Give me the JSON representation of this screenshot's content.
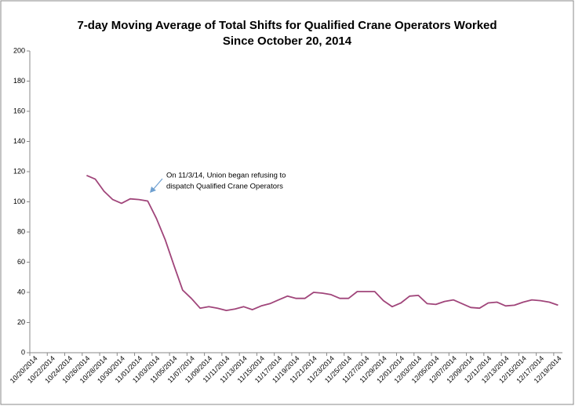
{
  "chart_data": {
    "type": "line",
    "title": "7-day Moving Average of Total Shifts for Qualified Crane Operators Worked",
    "subtitle": "Since October 20, 2014",
    "annotation": [
      "On 11/3/14, Union began refusing to",
      "dispatch Qualified Crane Operators"
    ],
    "categories": [
      "10/20/2014",
      null,
      "10/22/2014",
      null,
      "10/24/2014",
      null,
      "10/26/2014",
      null,
      "10/28/2014",
      null,
      "10/30/2014",
      null,
      "11/01/2014",
      null,
      "11/03/2014",
      null,
      "11/05/2014",
      null,
      "11/07/2014",
      null,
      "11/09/2014",
      null,
      "11/11/2014",
      null,
      "11/13/2014",
      null,
      "11/15/2014",
      null,
      "11/17/2014",
      null,
      "11/19/2014",
      null,
      "11/21/2014",
      null,
      "11/23/2014",
      null,
      "11/25/2014",
      null,
      "11/27/2014",
      null,
      "11/29/2014",
      null,
      "12/01/2014",
      null,
      "12/03/2014",
      null,
      "12/05/2014",
      null,
      "12/07/2014",
      null,
      "12/09/2014",
      null,
      "12/11/2014",
      null,
      "12/13/2014",
      null,
      "12/15/2014",
      null,
      "12/17/2014",
      null,
      "12/19/2014"
    ],
    "series": [
      {
        "color": "#a0457a",
        "values": [
          null,
          null,
          null,
          null,
          null,
          null,
          117.5,
          115,
          107,
          101.5,
          99,
          102,
          101.5,
          100.5,
          89,
          75,
          58,
          41.5,
          36,
          29.5,
          30.5,
          29.5,
          28,
          29,
          30.5,
          28.5,
          31,
          32.5,
          35,
          37.5,
          36,
          36,
          40,
          39.5,
          38.5,
          36,
          36,
          40.5,
          40.5,
          40.5,
          34.5,
          30.5,
          33,
          37.5,
          38,
          32.5,
          32,
          34,
          35,
          32.5,
          30,
          29.5,
          33,
          33.5,
          31,
          31.5,
          33.5,
          35,
          34.5,
          33.5,
          31.5
        ]
      }
    ],
    "ylim": [
      0,
      200
    ],
    "yticks": [
      0,
      20,
      40,
      60,
      80,
      100,
      120,
      140,
      160,
      180,
      200
    ],
    "grid": false
  }
}
